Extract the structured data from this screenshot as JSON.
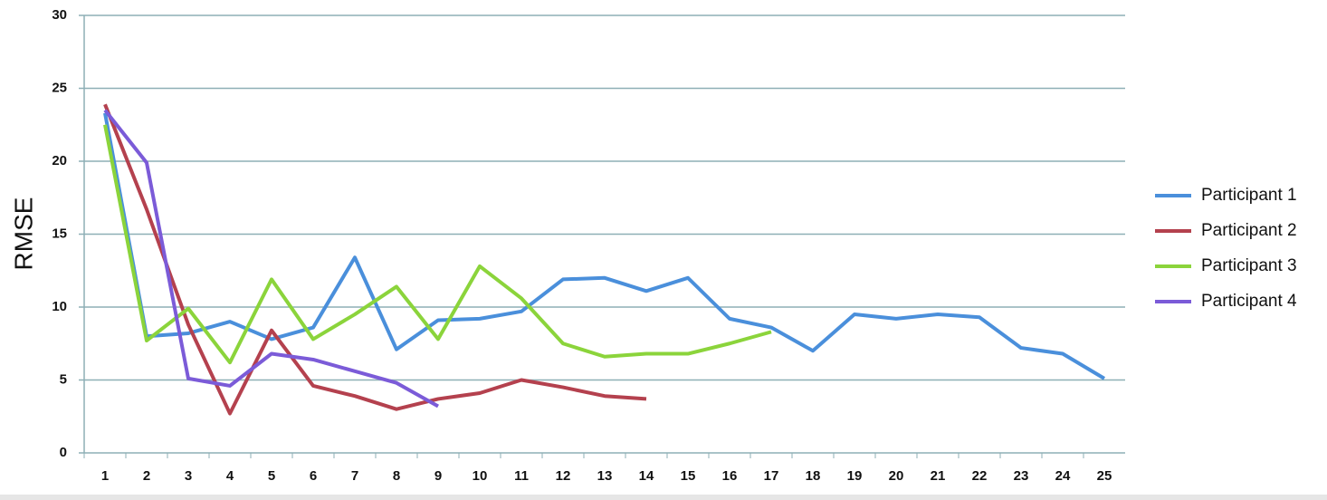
{
  "chart_data": {
    "type": "line",
    "ylabel": "RMSE",
    "categories": [
      "1",
      "2",
      "3",
      "4",
      "5",
      "6",
      "7",
      "8",
      "9",
      "10",
      "11",
      "12",
      "13",
      "14",
      "15",
      "16",
      "17",
      "18",
      "19",
      "20",
      "21",
      "22",
      "23",
      "24",
      "25"
    ],
    "series": [
      {
        "name": "Participant 1",
        "color": "#4a8fdb",
        "values": [
          23.3,
          8.0,
          8.2,
          9.0,
          7.8,
          8.6,
          13.4,
          7.1,
          9.1,
          9.2,
          9.7,
          11.9,
          12.0,
          11.1,
          12.0,
          9.2,
          8.6,
          7.0,
          9.5,
          9.2,
          9.5,
          9.3,
          7.2,
          6.8,
          5.1
        ]
      },
      {
        "name": "Participant 2",
        "color": "#b4414e",
        "values": [
          23.9,
          16.7,
          8.8,
          2.7,
          8.4,
          4.6,
          3.9,
          3.0,
          3.7,
          4.1,
          5.0,
          4.5,
          3.9,
          3.7,
          null,
          null,
          null,
          null,
          null,
          null,
          null,
          null,
          null,
          null,
          null
        ]
      },
      {
        "name": "Participant 3",
        "color": "#8bd43b",
        "values": [
          22.5,
          7.7,
          9.9,
          6.2,
          11.9,
          7.8,
          9.5,
          11.4,
          7.8,
          12.8,
          10.6,
          7.5,
          6.6,
          6.8,
          6.8,
          7.5,
          8.3,
          null,
          null,
          null,
          null,
          null,
          null,
          null,
          null
        ]
      },
      {
        "name": "Participant 4",
        "color": "#7b5bd8",
        "values": [
          23.5,
          19.9,
          5.1,
          4.6,
          6.8,
          6.4,
          5.6,
          4.8,
          3.2,
          null,
          null,
          null,
          null,
          null,
          null,
          null,
          null,
          null,
          null,
          null,
          null,
          null,
          null,
          null,
          null
        ]
      }
    ],
    "ylim": [
      0,
      30
    ],
    "yticks": [
      0,
      5,
      10,
      15,
      20,
      25,
      30
    ],
    "grid": true,
    "legend": "right"
  }
}
